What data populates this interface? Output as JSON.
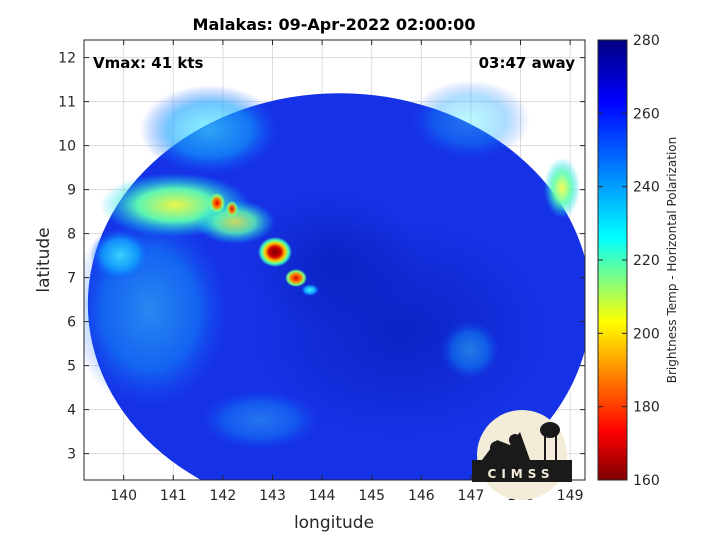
{
  "title": "Malakas: 09-Apr-2022 02:00:00",
  "annotations": {
    "vmax": "Vmax: 41 kts",
    "time_away": "03:47 away"
  },
  "axes": {
    "xlabel": "longitude",
    "ylabel": "latitude",
    "xlim": [
      139.2,
      149.3
    ],
    "ylim": [
      2.4,
      12.4
    ],
    "xticks": [
      "140",
      "141",
      "142",
      "143",
      "144",
      "145",
      "146",
      "147",
      "148",
      "149"
    ],
    "yticks": [
      "3",
      "4",
      "5",
      "6",
      "7",
      "8",
      "9",
      "10",
      "11",
      "12"
    ],
    "grid": true
  },
  "colorbar": {
    "label": "Brightness Temp - Horizontal Polarization",
    "ticks": [
      "160",
      "180",
      "200",
      "220",
      "240",
      "260",
      "280"
    ],
    "range": [
      160,
      280
    ],
    "colormap": [
      "#7f0000",
      "#ff0000",
      "#ffff00",
      "#00ffff",
      "#0000ff",
      "#00007f"
    ]
  },
  "swath": {
    "center": [
      144.35,
      6.4
    ],
    "radius_deg": 5.15,
    "base_color": "#1632e6",
    "features": [
      {
        "name": "cold-core-1",
        "lon": 143.0,
        "lat": 7.5,
        "tb": 165
      },
      {
        "name": "cold-core-2",
        "lon": 143.4,
        "lat": 6.95,
        "tb": 172
      },
      {
        "name": "cold-core-3",
        "lon": 141.9,
        "lat": 8.6,
        "tb": 188
      },
      {
        "name": "cold-core-4",
        "lon": 142.2,
        "lat": 8.5,
        "tb": 195
      },
      {
        "name": "warm-band-west",
        "lon": 141.4,
        "lat": 8.6,
        "tb": 225
      },
      {
        "name": "warm-patch-east",
        "lon": 148.8,
        "lat": 9.3,
        "tb": 225
      }
    ]
  },
  "logo": {
    "text": "CIMSS"
  }
}
